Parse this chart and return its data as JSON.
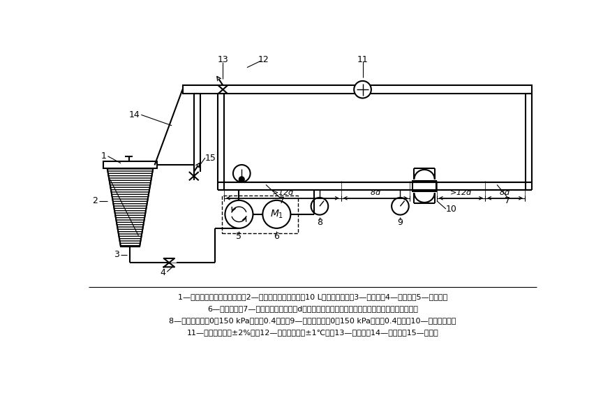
{
  "bg_color": "#ffffff",
  "line_color": "#000000",
  "caption_lines": [
    "1—试验油笱盖，上有通气孔；2—试验油笱（容量不小于10 L，带翳边盖）；3—吸油管；4—旁通阀；5—叶片泵；",
    "6—变速电机；7—滤清器连接管（内径d与滤清器相应的进出口孔径相同，直管长度如图所示）；",
    "8—压力表（量程0～150 kPa，精度0.4级）；9—差压计（量程0～150 kPa，精度0.4级）；10—被试滤清器；",
    "11—流量计（精度±2%）；12—温度计（精度±1℃）；13—调节鄀；14—回油管；15—旁通管"
  ]
}
